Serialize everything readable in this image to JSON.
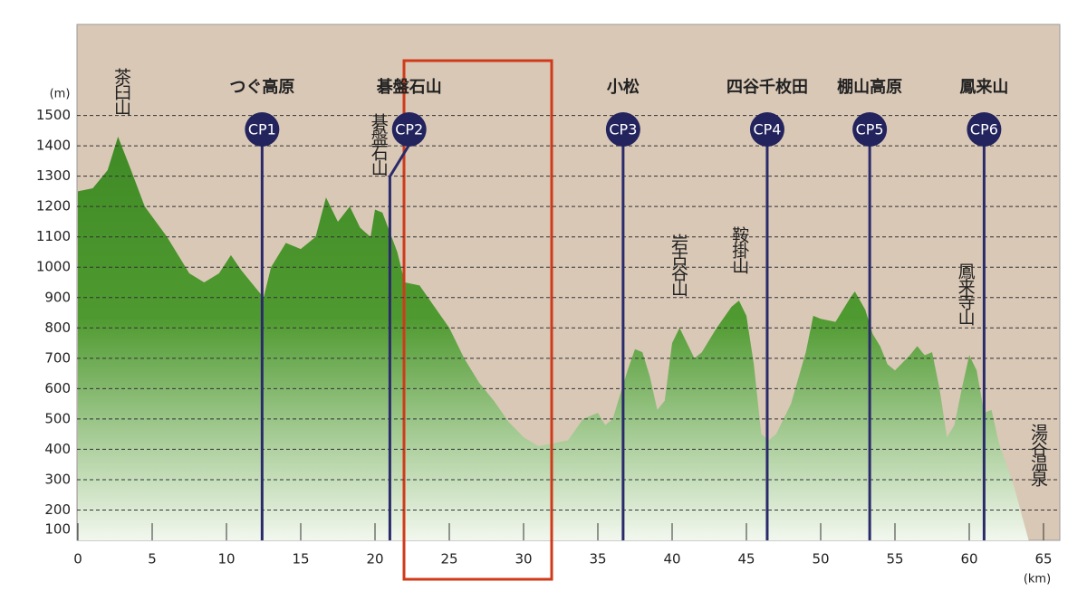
{
  "chart_data": {
    "type": "area",
    "y_unit": "(m)",
    "x_unit": "(km)",
    "xlim": [
      0,
      65
    ],
    "ylim": [
      100,
      1800
    ],
    "xticks": [
      0,
      5,
      10,
      15,
      20,
      25,
      30,
      35,
      40,
      45,
      50,
      55,
      60,
      65
    ],
    "yticks": [
      100,
      200,
      300,
      400,
      500,
      600,
      700,
      800,
      900,
      1000,
      1100,
      1200,
      1300,
      1400,
      1500
    ],
    "grid": true,
    "color": "#3f8a25",
    "x": [
      0,
      1,
      2,
      2.7,
      3.5,
      4.5,
      6,
      7.5,
      8.5,
      9.5,
      10.3,
      11,
      12,
      12.5,
      13,
      14,
      15,
      16,
      16.7,
      17.5,
      18.3,
      19,
      19.7,
      20,
      20.5,
      21.5,
      22,
      23,
      24,
      25,
      26,
      27,
      28,
      29,
      30,
      31,
      32,
      33,
      34,
      35,
      35.5,
      36,
      37,
      37.5,
      38,
      38.5,
      39,
      39.5,
      40,
      40.5,
      41.5,
      42,
      43,
      44,
      44.5,
      45,
      45.5,
      46,
      46.5,
      47,
      48,
      49,
      49.5,
      50,
      51,
      52,
      52.3,
      53,
      53.5,
      54,
      54.5,
      55,
      56,
      56.5,
      57,
      57.5,
      58,
      58.5,
      59,
      59.5,
      60,
      60.5,
      61,
      61.5,
      62,
      63,
      64
    ],
    "values": [
      1250,
      1260,
      1320,
      1430,
      1330,
      1200,
      1100,
      980,
      950,
      980,
      1040,
      990,
      930,
      900,
      1000,
      1080,
      1060,
      1100,
      1230,
      1150,
      1200,
      1130,
      1100,
      1190,
      1180,
      1050,
      950,
      940,
      870,
      800,
      700,
      620,
      560,
      490,
      440,
      410,
      420,
      430,
      500,
      520,
      480,
      500,
      660,
      730,
      720,
      640,
      530,
      560,
      750,
      800,
      700,
      720,
      800,
      870,
      890,
      840,
      680,
      450,
      430,
      450,
      550,
      720,
      840,
      830,
      820,
      900,
      920,
      860,
      780,
      740,
      680,
      660,
      710,
      740,
      710,
      720,
      600,
      440,
      480,
      600,
      710,
      660,
      520,
      530,
      420,
      280,
      100
    ],
    "checkpoints": [
      {
        "label": "CP1",
        "name": "つぐ高原",
        "km": 12.4
      },
      {
        "label": "CP2",
        "name": "碁盤石山",
        "km": 21
      },
      {
        "label": "CP3",
        "name": "小松",
        "km": 36.7
      },
      {
        "label": "CP4",
        "name": "四谷千枚田",
        "km": 46.4
      },
      {
        "label": "CP5",
        "name": "棚山高原",
        "km": 53.3
      },
      {
        "label": "CP6",
        "name": "鳳来山",
        "km": 61
      }
    ],
    "peaks": [
      {
        "name": "茶臼山",
        "km": 2.9
      },
      {
        "name": "碁盤石山",
        "km": 20.2
      },
      {
        "name": "岩古谷山",
        "km": 40.4
      },
      {
        "name": "鞍掛山",
        "km": 44.5
      },
      {
        "name": "鳳来寺山",
        "km": 59.7
      },
      {
        "name": "湯谷温泉",
        "km": 64.6
      }
    ]
  }
}
